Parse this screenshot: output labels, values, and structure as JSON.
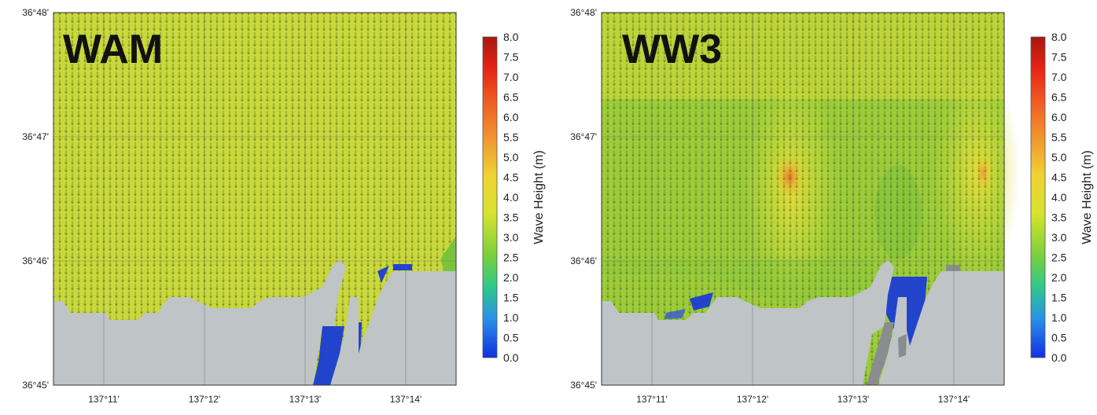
{
  "panels": [
    {
      "model": "WAM",
      "lat_labels": [
        "36°48'",
        "36°47'",
        "36°46'",
        "36°45'"
      ],
      "lon_labels": [
        "137°11'",
        "137°12'",
        "137°13'",
        "137°14'"
      ],
      "colorbar": {
        "title": "Wave Height (m)",
        "ticks": [
          "8.0",
          "7.5",
          "7.0",
          "6.5",
          "6.0",
          "5.5",
          "5.0",
          "4.5",
          "4.0",
          "3.5",
          "3.0",
          "2.5",
          "2.0",
          "1.5",
          "1.0",
          "0.5",
          "0.0"
        ]
      },
      "colors": {
        "sea": "#c9d83c",
        "land": "#bfc4c6",
        "shallow": "#2244cc"
      }
    },
    {
      "model": "WW3",
      "lat_labels": [
        "36°48'",
        "36°47'",
        "36°46'",
        "36°45'"
      ],
      "lon_labels": [
        "137°11'",
        "137°12'",
        "137°13'",
        "137°14'"
      ],
      "colorbar": {
        "title": "Wave Height (m)",
        "ticks": [
          "8.0",
          "7.5",
          "7.0",
          "6.5",
          "6.0",
          "5.5",
          "5.0",
          "4.5",
          "4.0",
          "3.5",
          "3.0",
          "2.5",
          "2.0",
          "1.5",
          "1.0",
          "0.5",
          "0.0"
        ]
      },
      "colors": {
        "sea": "#9ccc3a",
        "land": "#bfc4c6",
        "shallow": "#2244cc"
      }
    }
  ]
}
